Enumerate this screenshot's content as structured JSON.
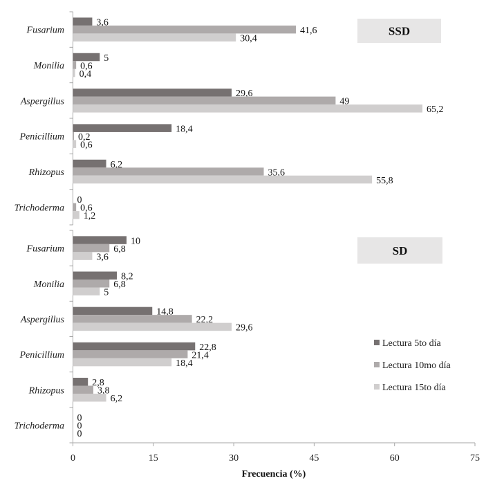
{
  "chart_data": [
    {
      "type": "bar",
      "orientation": "horizontal",
      "panel_label": "SSD",
      "categories": [
        "Fusarium",
        "Monilia",
        "Aspergillus",
        "Penicillium",
        "Rhizopus",
        "Trichoderma"
      ],
      "series": [
        {
          "name": "Lectura 5to día",
          "values": [
            3.6,
            5,
            29.6,
            18.4,
            6.2,
            0
          ],
          "labels": [
            "3,6",
            "5",
            "29,6",
            "18,4",
            "6,2",
            "0"
          ]
        },
        {
          "name": "Lectura 10mo día",
          "values": [
            41.6,
            0.6,
            49,
            0.2,
            35.6,
            0.6
          ],
          "labels": [
            "41,6",
            "0,6",
            "49",
            "0,2",
            "35,6",
            "0,6"
          ]
        },
        {
          "name": "Lectura 15to día",
          "values": [
            30.4,
            0.4,
            65.2,
            0.6,
            55.8,
            1.2
          ],
          "labels": [
            "30,4",
            "0,4",
            "65,2",
            "0,6",
            "55,8",
            "1,2"
          ]
        }
      ]
    },
    {
      "type": "bar",
      "orientation": "horizontal",
      "panel_label": "SD",
      "categories": [
        "Fusarium",
        "Monilia",
        "Aspergillus",
        "Penicillium",
        "Rhizopus",
        "Trichoderma"
      ],
      "series": [
        {
          "name": "Lectura 5to día",
          "values": [
            10,
            8.2,
            14.8,
            22.8,
            2.8,
            0
          ],
          "labels": [
            "10",
            "8,2",
            "14,8",
            "22,8",
            "2,8",
            "0"
          ]
        },
        {
          "name": "Lectura 10mo día",
          "values": [
            6.8,
            6.8,
            22.2,
            21.4,
            3.8,
            0
          ],
          "labels": [
            "6,8",
            "6,8",
            "22,2",
            "21,4",
            "3,8",
            "0"
          ]
        },
        {
          "name": "Lectura 15to día",
          "values": [
            3.6,
            5,
            29.6,
            18.4,
            6.2,
            0
          ],
          "labels": [
            "3,6",
            "5",
            "29,6",
            "18,4",
            "6,2",
            "0"
          ]
        }
      ]
    }
  ],
  "xaxis": {
    "label": "Frecuencia (%)",
    "range": [
      0,
      75
    ],
    "ticks": [
      "0",
      "15",
      "30",
      "45",
      "60",
      "75"
    ]
  },
  "legend": {
    "placement": "right",
    "items": [
      "Lectura 5to día",
      "Lectura 10mo día",
      "Lectura 15to día"
    ]
  },
  "colors": [
    "#767171",
    "#aeaaaa",
    "#d0cece"
  ],
  "grid": false
}
